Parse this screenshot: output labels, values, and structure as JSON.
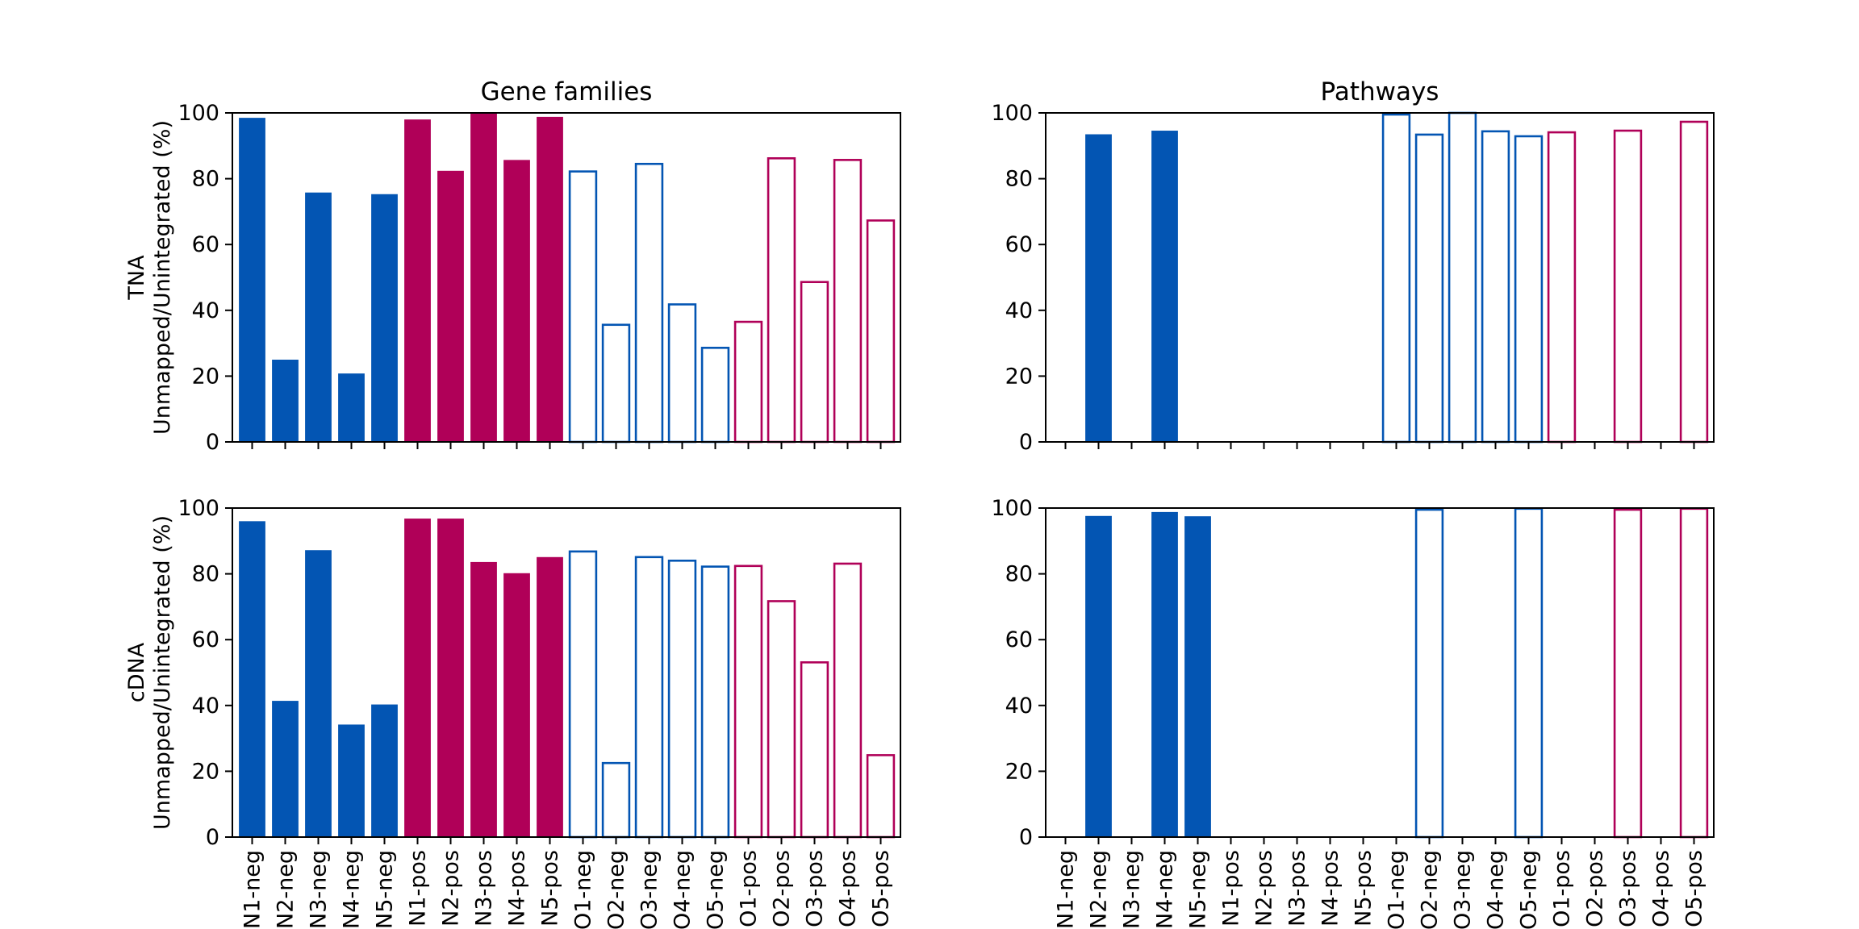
{
  "colors": {
    "n_fill": "#0355B3",
    "p_fill": "#B00058",
    "o_neg_edge": "#0355B3",
    "o_pos_edge": "#B00058",
    "axis": "#000000"
  },
  "chart_data": [
    {
      "type": "bar",
      "title": "Gene families",
      "ylabel": [
        "TNA",
        "Unmapped/Unintegrated (%)"
      ],
      "categories": [
        "N1-neg",
        "N2-neg",
        "N3-neg",
        "N4-neg",
        "N5-neg",
        "N1-pos",
        "N2-pos",
        "N3-pos",
        "N4-pos",
        "N5-pos",
        "O1-neg",
        "O2-neg",
        "O3-neg",
        "O4-neg",
        "O5-neg",
        "O1-pos",
        "O2-pos",
        "O3-pos",
        "O4-pos",
        "O5-pos"
      ],
      "values": [
        98.5,
        25.0,
        75.8,
        20.8,
        75.3,
        98.0,
        82.4,
        100.0,
        85.7,
        98.8,
        82.2,
        35.6,
        84.5,
        41.8,
        28.6,
        36.5,
        86.2,
        48.6,
        85.7,
        67.3
      ],
      "ylim": [
        0,
        100
      ],
      "yticks": [
        0,
        20,
        40,
        60,
        80,
        100
      ],
      "show_xticklabels": false
    },
    {
      "type": "bar",
      "title": "Pathways",
      "ylabel": [],
      "categories": [
        "N1-neg",
        "N2-neg",
        "N3-neg",
        "N4-neg",
        "N5-neg",
        "N1-pos",
        "N2-pos",
        "N3-pos",
        "N4-pos",
        "N5-pos",
        "O1-neg",
        "O2-neg",
        "O3-neg",
        "O4-neg",
        "O5-neg",
        "O1-pos",
        "O2-pos",
        "O3-pos",
        "O4-pos",
        "O5-pos"
      ],
      "values": [
        0,
        93.5,
        0,
        94.6,
        0,
        0,
        0,
        0,
        0,
        0,
        99.5,
        93.4,
        100.0,
        94.4,
        92.9,
        94.1,
        0,
        94.6,
        0,
        97.3
      ],
      "ylim": [
        0,
        100
      ],
      "yticks": [
        0,
        20,
        40,
        60,
        80,
        100
      ],
      "show_xticklabels": false
    },
    {
      "type": "bar",
      "title": "",
      "ylabel": [
        "cDNA",
        "Unmapped/Unintegrated (%)"
      ],
      "categories": [
        "N1-neg",
        "N2-neg",
        "N3-neg",
        "N4-neg",
        "N5-neg",
        "N1-pos",
        "N2-pos",
        "N3-pos",
        "N4-pos",
        "N5-pos",
        "O1-neg",
        "O2-neg",
        "O3-neg",
        "O4-neg",
        "O5-neg",
        "O1-pos",
        "O2-pos",
        "O3-pos",
        "O4-pos",
        "O5-pos"
      ],
      "values": [
        96.0,
        41.4,
        87.2,
        34.2,
        40.3,
        96.8,
        96.8,
        83.6,
        80.2,
        85.1,
        86.8,
        22.5,
        85.1,
        84.0,
        82.2,
        82.4,
        71.7,
        53.1,
        83.1,
        24.9
      ],
      "ylim": [
        0,
        100
      ],
      "yticks": [
        0,
        20,
        40,
        60,
        80,
        100
      ],
      "show_xticklabels": true
    },
    {
      "type": "bar",
      "title": "",
      "ylabel": [],
      "categories": [
        "N1-neg",
        "N2-neg",
        "N3-neg",
        "N4-neg",
        "N5-neg",
        "N1-pos",
        "N2-pos",
        "N3-pos",
        "N4-pos",
        "N5-pos",
        "O1-neg",
        "O2-neg",
        "O3-neg",
        "O4-neg",
        "O5-neg",
        "O1-pos",
        "O2-pos",
        "O3-pos",
        "O4-pos",
        "O5-pos"
      ],
      "values": [
        0,
        97.6,
        0,
        98.8,
        97.5,
        0,
        0,
        0,
        0,
        0,
        0,
        99.5,
        0,
        0,
        99.8,
        0,
        0,
        99.5,
        0,
        99.8
      ],
      "ylim": [
        0,
        100
      ],
      "yticks": [
        0,
        20,
        40,
        60,
        80,
        100
      ],
      "show_xticklabels": true
    }
  ]
}
